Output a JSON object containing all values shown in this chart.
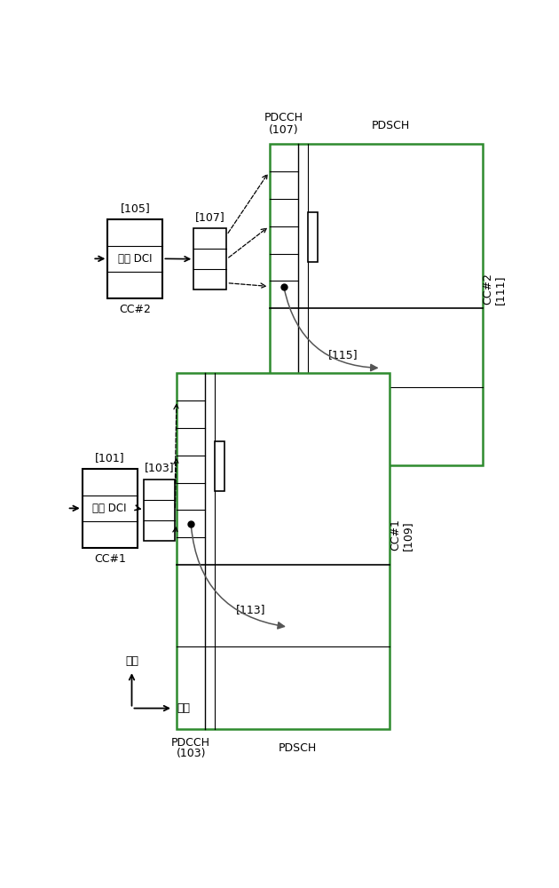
{
  "bg_color": "#ffffff",
  "lc": "#000000",
  "gc": "#2e8b2e",
  "cc1": {
    "dci_label": "正常 DCI",
    "ref_dci": "[101]",
    "ref_pdcch_small": "[103]",
    "cc_right_label": "CC#1",
    "cc_right_ref": "[109]",
    "cc_left_label": "CC#1",
    "arrow_label": "[113]",
    "pdcch_bot_label": "PDCCH\n(103)",
    "pdsch_bot_label": "PDSCH"
  },
  "cc2": {
    "dci_label": "正常 DCI",
    "ref_dci": "[105]",
    "ref_pdcch_small": "[107]",
    "cc_right_label": "CC#2",
    "cc_right_ref": "[111]",
    "cc_left_label": "CC#2",
    "arrow_label": "[115]",
    "pdcch_top_label": "PDCCH\n(107)",
    "pdsch_top_label": "PDSCH"
  },
  "freq_label": "频率",
  "time_label": "时间"
}
